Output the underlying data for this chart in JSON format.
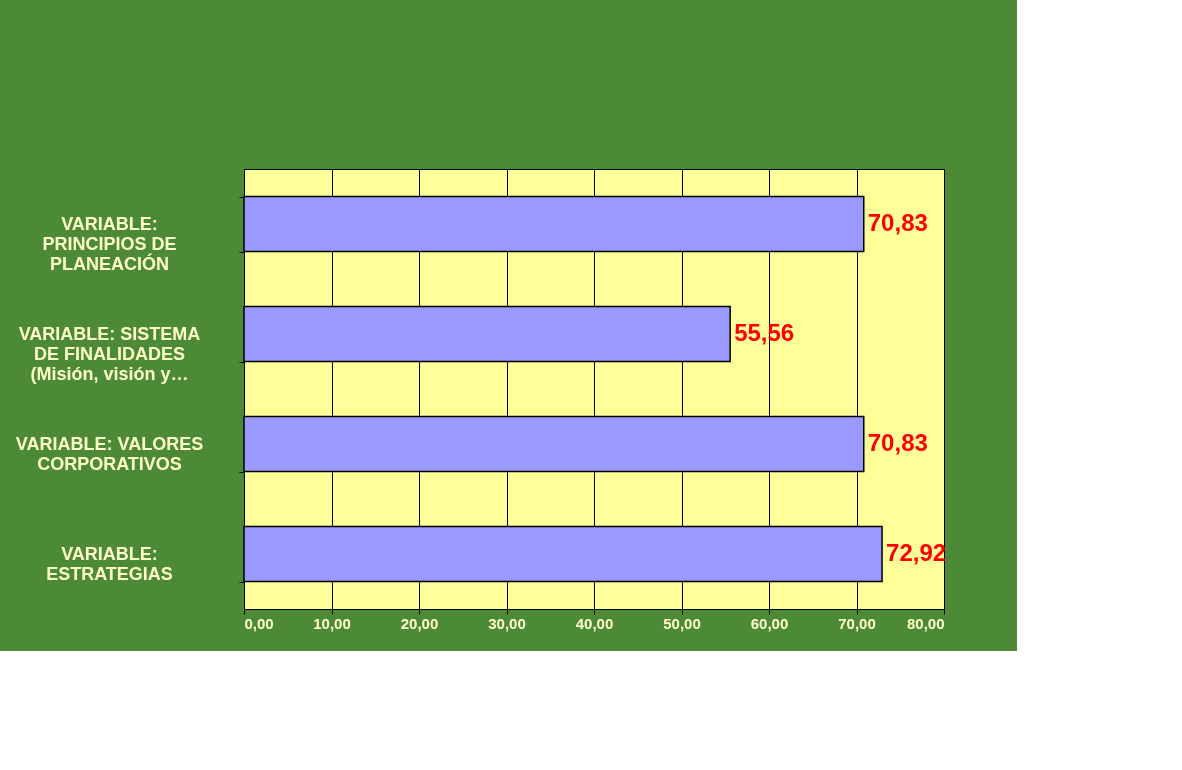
{
  "chart_data": {
    "type": "bar",
    "orientation": "horizontal",
    "categories": [
      "VARIABLE: PRINCIPIOS DE PLANEACIÓN",
      "VARIABLE: SISTEMA DE FINALIDADES (Misión, visión y…",
      "VARIABLE: VALORES CORPORATIVOS",
      "VARIABLE: ESTRATEGIAS"
    ],
    "values": [
      70.83,
      55.56,
      70.83,
      72.92
    ],
    "value_labels": [
      "70,83",
      "55,56",
      "70,83",
      "72,92"
    ],
    "color": "#9999ff",
    "xlim": [
      0,
      80
    ],
    "xticks": [
      {
        "value": 0,
        "label": "0,00"
      },
      {
        "value": 10,
        "label": "10,00"
      },
      {
        "value": 20,
        "label": "20,00"
      },
      {
        "value": 30,
        "label": "30,00"
      },
      {
        "value": 40,
        "label": "40,00"
      },
      {
        "value": 50,
        "label": "50,00"
      },
      {
        "value": 60,
        "label": "60,00"
      },
      {
        "value": 70,
        "label": "70,00"
      },
      {
        "value": 80,
        "label": "80,00"
      }
    ],
    "grid": "x"
  }
}
